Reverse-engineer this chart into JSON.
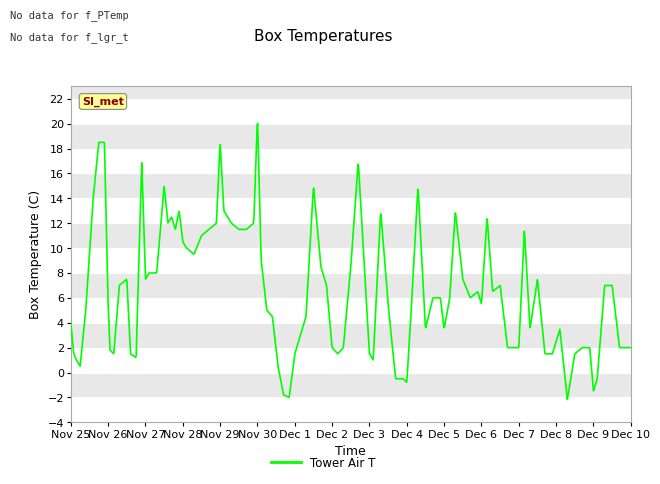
{
  "title": "Box Temperatures",
  "xlabel": "Time",
  "ylabel": "Box Temperature (C)",
  "ylim": [
    -4,
    23
  ],
  "yticks": [
    -4,
    -2,
    0,
    2,
    4,
    6,
    8,
    10,
    12,
    14,
    16,
    18,
    20,
    22
  ],
  "line_color": "#00FF00",
  "line_width": 1.2,
  "fig_bg_color": "#FFFFFF",
  "plot_bg_color": "#E8E8E8",
  "annotations_top_left": [
    "No data for f_PTemp",
    "No data for f_lgr_t"
  ],
  "legend_label": "Tower Air T",
  "si_met_label": "SI_met",
  "x_tick_labels": [
    "Nov 25",
    "Nov 26",
    "Nov 27",
    "Nov 28",
    "Nov 29",
    "Nov 30",
    "Dec 1",
    "Dec 2",
    "Dec 3",
    "Dec 4",
    "Dec 5",
    "Dec 6",
    "Dec 7",
    "Dec 8",
    "Dec 9",
    "Dec 10"
  ],
  "title_fontsize": 11,
  "axis_label_fontsize": 9,
  "tick_fontsize": 8,
  "waypoints_t": [
    0,
    0.08,
    0.15,
    0.25,
    0.4,
    0.6,
    0.75,
    0.9,
    1.0,
    1.05,
    1.15,
    1.3,
    1.5,
    1.6,
    1.75,
    1.9,
    2.0,
    2.1,
    2.3,
    2.5,
    2.6,
    2.7,
    2.8,
    2.9,
    3.0,
    3.1,
    3.3,
    3.5,
    3.7,
    3.9,
    4.0,
    4.1,
    4.3,
    4.5,
    4.7,
    4.9,
    5.0,
    5.1,
    5.25,
    5.4,
    5.55,
    5.7,
    5.85,
    6.0,
    6.15,
    6.3,
    6.5,
    6.7,
    6.85,
    7.0,
    7.15,
    7.3,
    7.5,
    7.7,
    7.9,
    8.0,
    8.1,
    8.3,
    8.5,
    8.7,
    8.9,
    9.0,
    9.1,
    9.3,
    9.5,
    9.7,
    9.9,
    10.0,
    10.15,
    10.3,
    10.5,
    10.7,
    10.9,
    11.0,
    11.15,
    11.3,
    11.5,
    11.7,
    11.9,
    12.0,
    12.15,
    12.3,
    12.5,
    12.7,
    12.9,
    13.0,
    13.1,
    13.3,
    13.5,
    13.7,
    13.9,
    14.0,
    14.1,
    14.3,
    14.5,
    14.7,
    14.9,
    15.0
  ],
  "waypoints_v": [
    4.0,
    1.5,
    1.0,
    0.5,
    5.0,
    14.0,
    18.5,
    18.5,
    5.5,
    1.8,
    1.5,
    7.0,
    7.5,
    1.5,
    1.2,
    17.0,
    7.5,
    8.0,
    8.0,
    15.0,
    12.0,
    12.5,
    11.5,
    13.0,
    10.5,
    10.0,
    9.5,
    11.0,
    11.5,
    12.0,
    18.5,
    13.0,
    12.0,
    11.5,
    11.5,
    12.0,
    20.5,
    9.0,
    5.0,
    4.5,
    0.5,
    -1.8,
    -2.0,
    1.5,
    3.0,
    4.5,
    15.0,
    8.5,
    7.0,
    2.0,
    1.5,
    2.0,
    8.5,
    17.0,
    6.5,
    1.5,
    1.0,
    13.0,
    5.5,
    -0.5,
    -0.5,
    -0.8,
    4.0,
    15.0,
    3.5,
    6.0,
    6.0,
    3.5,
    6.0,
    13.0,
    7.5,
    6.0,
    6.5,
    5.5,
    12.5,
    6.5,
    7.0,
    2.0,
    2.0,
    2.0,
    11.5,
    3.5,
    7.5,
    1.5,
    1.5,
    2.5,
    3.5,
    -2.2,
    1.5,
    2.0,
    2.0,
    -1.5,
    -0.5,
    7.0,
    7.0,
    2.0,
    2.0,
    2.0
  ]
}
